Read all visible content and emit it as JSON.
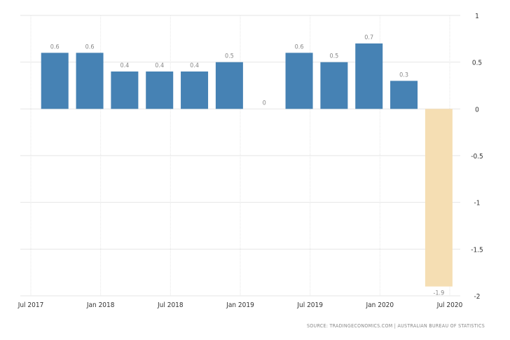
{
  "chart_data": {
    "type": "bar",
    "title": "",
    "xlabel": "",
    "ylabel": "",
    "x": [
      "2017-09",
      "2017-12",
      "2018-03",
      "2018-06",
      "2018-09",
      "2018-12",
      "2019-03",
      "2019-06",
      "2019-09",
      "2019-12",
      "2020-03",
      "2020-06"
    ],
    "values": [
      0.6,
      0.6,
      0.4,
      0.4,
      0.4,
      0.5,
      0,
      0.6,
      0.5,
      0.7,
      0.3,
      -1.9
    ],
    "data_labels": [
      "0.6",
      "0.6",
      "0.4",
      "0.4",
      "0.4",
      "0.5",
      "0",
      "0.6",
      "0.5",
      "0.7",
      "0.3",
      "-1.9"
    ],
    "ylim": [
      -2,
      1
    ],
    "y_ticks": [
      1,
      0.5,
      0,
      -0.5,
      -1,
      -1.5,
      -2
    ],
    "y_tick_labels": [
      "1",
      "0.5",
      "0",
      "-0.5",
      "-1",
      "-1.5",
      "-2"
    ],
    "x_ticks": [
      "2017-07",
      "2018-01",
      "2018-07",
      "2019-01",
      "2019-07",
      "2020-01",
      "2020-07"
    ],
    "x_tick_labels": [
      "Jul 2017",
      "Jan 2018",
      "Jul 2018",
      "Jan 2019",
      "Jul 2019",
      "Jan 2020",
      "Jul 2020"
    ],
    "y_axis_position": "right",
    "grid": true,
    "colors": {
      "bar": "#4682b4",
      "highlight_bar": "#f5deb3",
      "grid": "#e6e6e6"
    },
    "highlight_last": true
  },
  "source": "SOURCE: TRADINGECONOMICS.COM | AUSTRALIAN BUREAU OF STATISTICS"
}
